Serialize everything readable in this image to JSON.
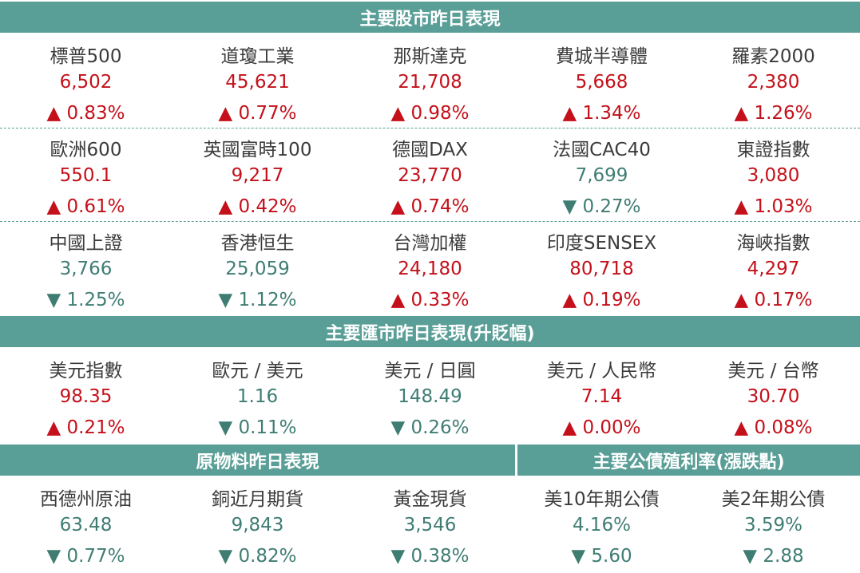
{
  "colors": {
    "header_bg": "#5a9f97",
    "up": "#c4101a",
    "down": "#3f7d73"
  },
  "stocks": {
    "title": "主要股市昨日表現",
    "rows": [
      [
        {
          "name": "標普500",
          "value": "6,502",
          "change": "▲ 0.83%",
          "dir": "up"
        },
        {
          "name": "道瓊工業",
          "value": "45,621",
          "change": "▲ 0.77%",
          "dir": "up"
        },
        {
          "name": "那斯達克",
          "value": "21,708",
          "change": "▲ 0.98%",
          "dir": "up"
        },
        {
          "name": "費城半導體",
          "value": "5,668",
          "change": "▲ 1.34%",
          "dir": "up"
        },
        {
          "name": "羅素2000",
          "value": "2,380",
          "change": "▲ 1.26%",
          "dir": "up"
        }
      ],
      [
        {
          "name": "歐洲600",
          "value": "550.1",
          "change": "▲ 0.61%",
          "dir": "up"
        },
        {
          "name": "英國富時100",
          "value": "9,217",
          "change": "▲ 0.42%",
          "dir": "up"
        },
        {
          "name": "德國DAX",
          "value": "23,770",
          "change": "▲ 0.74%",
          "dir": "up"
        },
        {
          "name": "法國CAC40",
          "value": "7,699",
          "change": "▼ 0.27%",
          "dir": "down"
        },
        {
          "name": "東證指數",
          "value": "3,080",
          "change": "▲ 1.03%",
          "dir": "up"
        }
      ],
      [
        {
          "name": "中國上證",
          "value": "3,766",
          "change": "▼ 1.25%",
          "dir": "down"
        },
        {
          "name": "香港恒生",
          "value": "25,059",
          "change": "▼ 1.12%",
          "dir": "down"
        },
        {
          "name": "台灣加權",
          "value": "24,180",
          "change": "▲ 0.33%",
          "dir": "up"
        },
        {
          "name": "印度SENSEX",
          "value": "80,718",
          "change": "▲ 0.19%",
          "dir": "up"
        },
        {
          "name": "海峽指數",
          "value": "4,297",
          "change": "▲ 0.17%",
          "dir": "up"
        }
      ]
    ]
  },
  "fx": {
    "title": "主要匯市昨日表現(升貶幅)",
    "items": [
      {
        "name": "美元指數",
        "value": "98.35",
        "change": "▲ 0.21%",
        "dir": "up"
      },
      {
        "name": "歐元 / 美元",
        "value": "1.16",
        "change": "▼ 0.11%",
        "dir": "down"
      },
      {
        "name": "美元 / 日圓",
        "value": "148.49",
        "change": "▼ 0.26%",
        "dir": "down"
      },
      {
        "name": "美元 / 人民幣",
        "value": "7.14",
        "change": "▲ 0.00%",
        "dir": "up"
      },
      {
        "name": "美元 / 台幣",
        "value": "30.70",
        "change": "▲ 0.08%",
        "dir": "up"
      }
    ]
  },
  "commodities": {
    "title": "原物料昨日表現",
    "items": [
      {
        "name": "西德州原油",
        "value": "63.48",
        "change": "▼ 0.77%",
        "dir": "down"
      },
      {
        "name": "銅近月期貨",
        "value": "9,843",
        "change": "▼ 0.82%",
        "dir": "down"
      },
      {
        "name": "黃金現貨",
        "value": "3,546",
        "change": "▼ 0.38%",
        "dir": "down"
      }
    ]
  },
  "bonds": {
    "title": "主要公債殖利率(漲跌點)",
    "items": [
      {
        "name": "美10年期公債",
        "value": "4.16%",
        "change": "▼ 5.60",
        "dir": "down"
      },
      {
        "name": "美2年期公債",
        "value": "3.59%",
        "change": "▼ 2.88",
        "dir": "down"
      }
    ]
  }
}
